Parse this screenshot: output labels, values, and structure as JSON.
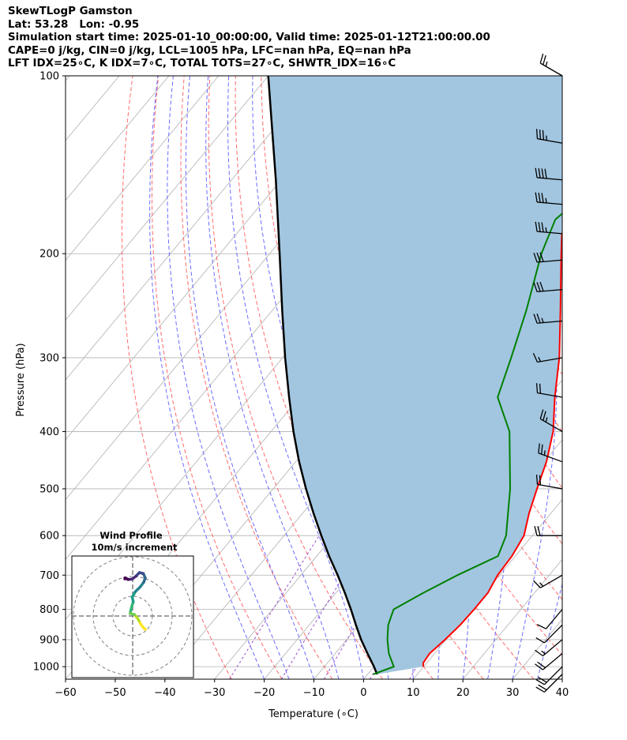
{
  "header": {
    "line1": "SkewTLogP Gamston",
    "line2": "Lat: 53.28   Lon: -0.95",
    "line3": "Simulation start time: 2025-01-10_00:00:00, Valid time: 2025-01-12T21:00:00.00",
    "line4": "CAPE=0 j/kg, CIN=0 j/kg, LCL=1005 hPa, LFC=nan hPa, EQ=nan hPa",
    "line5": "LFT IDX=25∘C, K IDX=7∘C, TOTAL TOTS=27∘C, SHWTR_IDX=16∘C"
  },
  "colors": {
    "temperature": "#ff0000",
    "dewpoint": "#008000",
    "parcel": "#000000",
    "cape_shading": "#a2c6e0",
    "dry_adiabats": "#ff6b6b",
    "moist_adiabats": "#6b6bff",
    "mixing_ratio": "#9a4fd0",
    "isotherms": "#b0b0b0"
  },
  "chart_data": {
    "type": "line",
    "title": "",
    "xlabel": "Temperature (∘C)",
    "ylabel": "Pressure (hPa)",
    "x_ticks": [
      -60,
      -50,
      -40,
      -30,
      -20,
      -10,
      0,
      10,
      20,
      30,
      40
    ],
    "y_ticks": [
      100,
      200,
      300,
      400,
      500,
      600,
      700,
      800,
      900,
      1000
    ],
    "xlim": [
      -60,
      40
    ],
    "ylim": [
      1050,
      100
    ],
    "y_scale": "log",
    "grid": true,
    "series": [
      {
        "kind": "temperature",
        "points": [
          [
            1000,
            9.9
          ],
          [
            985,
            9.3
          ],
          [
            950,
            9.0
          ],
          [
            900,
            9.8
          ],
          [
            850,
            10.4
          ],
          [
            800,
            10.6
          ],
          [
            750,
            10.6
          ],
          [
            700,
            9.6
          ],
          [
            650,
            9.3
          ],
          [
            600,
            8.3
          ],
          [
            550,
            5.6
          ],
          [
            500,
            3.1
          ],
          [
            450,
            0.5
          ],
          [
            400,
            -3.2
          ],
          [
            350,
            -8.6
          ],
          [
            300,
            -14.3
          ],
          [
            250,
            -21.9
          ],
          [
            200,
            -31.3
          ],
          [
            185,
            -34.5
          ],
          [
            175,
            -34.4
          ],
          [
            165,
            -32.9
          ],
          [
            150,
            -31.0
          ],
          [
            130,
            -28.2
          ],
          [
            115,
            -25.7
          ],
          [
            100,
            -24.2
          ]
        ]
      },
      {
        "kind": "dewpoint",
        "points": [
          [
            1030,
            1.1
          ],
          [
            1000,
            4.0
          ],
          [
            950,
            0.8
          ],
          [
            900,
            -1.8
          ],
          [
            850,
            -4.1
          ],
          [
            800,
            -5.6
          ],
          [
            750,
            -2.4
          ],
          [
            700,
            1.5
          ],
          [
            650,
            6.5
          ],
          [
            600,
            4.7
          ],
          [
            500,
            -2.3
          ],
          [
            400,
            -12.0
          ],
          [
            350,
            -20.1
          ],
          [
            300,
            -24.0
          ],
          [
            250,
            -28.8
          ],
          [
            200,
            -35.3
          ],
          [
            175,
            -38.2
          ],
          [
            150,
            -35.4
          ],
          [
            130,
            -35.5
          ],
          [
            115,
            -36.4
          ],
          [
            100,
            -40.5
          ]
        ]
      },
      {
        "kind": "parcel",
        "points": [
          [
            1030,
            1.9
          ],
          [
            1000,
            0.0
          ],
          [
            950,
            -3.5
          ],
          [
            900,
            -7.1
          ],
          [
            850,
            -10.6
          ],
          [
            800,
            -14.2
          ],
          [
            750,
            -18.2
          ],
          [
            700,
            -22.6
          ],
          [
            650,
            -27.5
          ],
          [
            600,
            -32.5
          ],
          [
            550,
            -37.8
          ],
          [
            500,
            -43.4
          ],
          [
            450,
            -49.3
          ],
          [
            400,
            -55.5
          ],
          [
            350,
            -62.1
          ],
          [
            300,
            -69.5
          ],
          [
            250,
            -77.9
          ],
          [
            200,
            -88.0
          ],
          [
            150,
            -101.1
          ],
          [
            100,
            -120.0
          ]
        ]
      }
    ],
    "wind_barbs": [
      [
        1030,
        225,
        20
      ],
      [
        1000,
        225,
        20
      ],
      [
        950,
        230,
        20
      ],
      [
        900,
        230,
        15
      ],
      [
        850,
        225,
        10
      ],
      [
        800,
        220,
        10
      ],
      [
        700,
        240,
        15
      ],
      [
        600,
        270,
        20
      ],
      [
        500,
        280,
        20
      ],
      [
        450,
        290,
        25
      ],
      [
        400,
        300,
        25
      ],
      [
        350,
        280,
        20
      ],
      [
        300,
        260,
        15
      ],
      [
        260,
        265,
        25
      ],
      [
        230,
        265,
        30
      ],
      [
        205,
        265,
        30
      ],
      [
        185,
        275,
        35
      ],
      [
        165,
        275,
        35
      ],
      [
        150,
        275,
        40
      ],
      [
        130,
        280,
        35
      ],
      [
        100,
        300,
        25
      ]
    ],
    "hodograph": {
      "title": "Wind Profile",
      "subtitle": "10m/s increment",
      "uv": [
        [
          6.5,
          -6.8
        ],
        [
          5.8,
          -6.3
        ],
        [
          4.4,
          -4.6
        ],
        [
          3.3,
          -2.6
        ],
        [
          2.5,
          -1.2
        ],
        [
          0.9,
          0.7
        ],
        [
          -1.3,
          1.3
        ],
        [
          -1.0,
          2.6
        ],
        [
          -0.5,
          4.7
        ],
        [
          0.3,
          7.1
        ],
        [
          -0.2,
          9.6
        ],
        [
          1.4,
          12.4
        ],
        [
          3.7,
          14.6
        ],
        [
          5.6,
          17.1
        ],
        [
          6.4,
          19.3
        ],
        [
          5.4,
          21.5
        ],
        [
          3.4,
          22.0
        ],
        [
          1.6,
          20.1
        ],
        [
          -0.3,
          18.7
        ],
        [
          -2.3,
          18.5
        ],
        [
          -3.9,
          19.3
        ],
        [
          -4.0,
          18.8
        ]
      ]
    }
  }
}
